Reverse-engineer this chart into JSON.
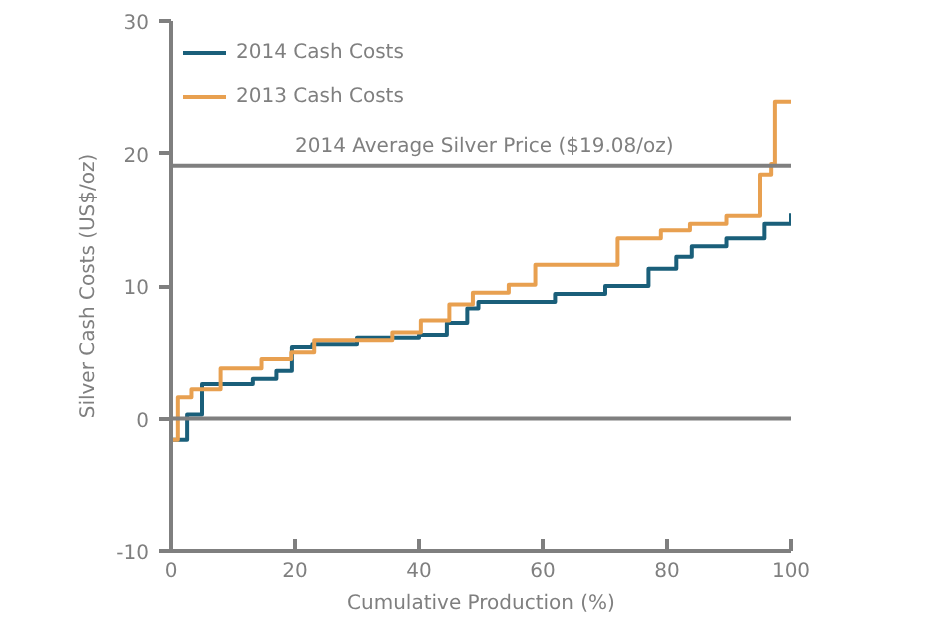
{
  "chart_data": {
    "type": "step",
    "xlabel": "Cumulative Production (%)",
    "ylabel": "Silver Cash Costs (US$/oz)",
    "xlim": [
      0,
      100
    ],
    "xticks": [
      0,
      20,
      40,
      60,
      80,
      100
    ],
    "ylim": [
      -10,
      30
    ],
    "yticks": [
      -10,
      0,
      10,
      20,
      30
    ],
    "grid": false,
    "legend": "top left",
    "line_style": "solid",
    "series": [
      {
        "name": "2014 Cash Costs",
        "color": "#1a5f7a",
        "x": [
          0,
          2.6,
          5,
          13.2,
          17,
          19.5,
          22.8,
          30,
          40,
          44.5,
          47.8,
          49.6,
          62,
          70,
          77,
          81.5,
          84,
          89.6,
          95.7,
          100
        ],
        "values": [
          -1.6,
          0.3,
          2.6,
          3.0,
          3.6,
          5.4,
          5.6,
          6.1,
          6.3,
          7.2,
          8.3,
          8.8,
          9.4,
          10.0,
          11.3,
          12.2,
          13.0,
          13.6,
          14.7,
          15.5
        ]
      },
      {
        "name": "2013 Cash Costs",
        "color": "#e8a050",
        "x": [
          0,
          1.1,
          3.3,
          8,
          14.6,
          19.4,
          23.1,
          35.7,
          40.3,
          44.9,
          48.7,
          54.5,
          58.8,
          72,
          79,
          83.7,
          89.6,
          95,
          96.8,
          97.4,
          100
        ],
        "values": [
          -1.6,
          1.6,
          2.2,
          3.8,
          4.5,
          5.0,
          5.9,
          6.5,
          7.4,
          8.6,
          9.5,
          10.1,
          11.6,
          13.6,
          14.2,
          14.7,
          15.3,
          18.4,
          19.2,
          23.9,
          23.9
        ]
      }
    ],
    "ref_lines": [
      {
        "axis": "y",
        "value": 19.08,
        "label": "2014 Average Silver Price ($19.08/oz)",
        "color": "#7f7f7f"
      },
      {
        "axis": "y",
        "value": 0,
        "label": null,
        "color": "#7f7f7f"
      }
    ]
  }
}
